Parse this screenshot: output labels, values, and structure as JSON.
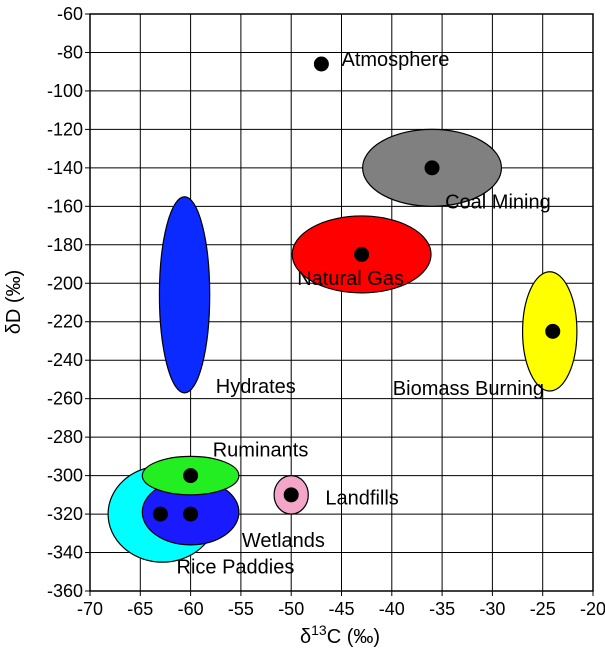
{
  "chart_data": {
    "type": "scatter",
    "xlabel": "δ13C (‰)",
    "ylabel": "δD (‰)",
    "xlim": [
      -70,
      -20
    ],
    "ylim": [
      -360,
      -60
    ],
    "xticks": [
      -70,
      -65,
      -60,
      -55,
      -50,
      -45,
      -40,
      -35,
      -30,
      -25,
      -20
    ],
    "yticks": [
      -60,
      -80,
      -100,
      -120,
      -140,
      -160,
      -180,
      -200,
      -220,
      -240,
      -260,
      -280,
      -300,
      -320,
      -340,
      -360
    ],
    "grid": true,
    "ellipses": [
      {
        "name": "Rice Paddies",
        "cx": -62.8,
        "cy": -320,
        "rx": 5.4,
        "ry": 25,
        "color": "#00ffff"
      },
      {
        "name": "Wetlands",
        "cx": -60.0,
        "cy": -319,
        "rx": 4.8,
        "ry": 17,
        "color": "#1a1aff"
      },
      {
        "name": "Ruminants",
        "cx": -60.0,
        "cy": -300,
        "rx": 4.8,
        "ry": 10,
        "color": "#22ee22"
      },
      {
        "name": "Hydrates",
        "cx": -60.6,
        "cy": -206,
        "rx": 2.5,
        "ry": 51,
        "color": "#0a2aff"
      },
      {
        "name": "Landfills",
        "cx": -50.0,
        "cy": -310,
        "rx": 1.7,
        "ry": 10,
        "color": "#f4a6c8"
      },
      {
        "name": "Natural Gas",
        "cx": -43.0,
        "cy": -185,
        "rx": 6.9,
        "ry": 20,
        "color": "#ff0000"
      },
      {
        "name": "Coal Mining",
        "cx": -36.0,
        "cy": -140,
        "rx": 6.9,
        "ry": 20,
        "color": "#808080"
      },
      {
        "name": "Biomass Burning",
        "cx": -24.3,
        "cy": -225,
        "rx": 2.7,
        "ry": 31,
        "color": "#ffff00"
      }
    ],
    "points": [
      {
        "name": "Atmosphere",
        "x": -47,
        "y": -86
      },
      {
        "name": "Coal Mining",
        "x": -36,
        "y": -140
      },
      {
        "name": "Natural Gas",
        "x": -43,
        "y": -185
      },
      {
        "name": "Biomass Burning",
        "x": -24,
        "y": -225
      },
      {
        "name": "Ruminants",
        "x": -60,
        "y": -300
      },
      {
        "name": "Landfills",
        "x": -50,
        "y": -310
      },
      {
        "name": "Wetlands",
        "x": -60,
        "y": -320
      },
      {
        "name": "Rice Paddies",
        "x": -63,
        "y": -320
      }
    ],
    "annotations": [
      {
        "text": "Atmosphere",
        "x": -45.0,
        "y": -87
      },
      {
        "text": "Coal Mining",
        "x": -34.7,
        "y": -161
      },
      {
        "text": "Natural Gas",
        "x": -49.4,
        "y": -201
      },
      {
        "text": "Hydrates",
        "x": -57.5,
        "y": -257
      },
      {
        "text": "Biomass Burning",
        "x": -39.9,
        "y": -258
      },
      {
        "text": "Ruminants",
        "x": -57.8,
        "y": -290
      },
      {
        "text": "Landfills",
        "x": -46.6,
        "y": -315
      },
      {
        "text": "Wetlands",
        "x": -54.9,
        "y": -337
      },
      {
        "text": "Rice Paddies",
        "x": -61.4,
        "y": -351
      }
    ]
  }
}
